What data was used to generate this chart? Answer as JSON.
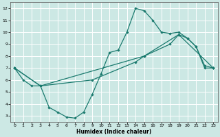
{
  "title": "",
  "xlabel": "Humidex (Indice chaleur)",
  "bg_color": "#cce8e4",
  "line_color": "#1a7a6e",
  "grid_color": "#ffffff",
  "xlim": [
    -0.5,
    23.5
  ],
  "ylim": [
    2.5,
    12.5
  ],
  "xticks": [
    0,
    1,
    2,
    3,
    4,
    5,
    6,
    7,
    8,
    9,
    10,
    11,
    12,
    13,
    14,
    15,
    16,
    17,
    18,
    19,
    20,
    21,
    22,
    23
  ],
  "yticks": [
    3,
    4,
    5,
    6,
    7,
    8,
    9,
    10,
    11,
    12
  ],
  "curve1_x": [
    0,
    1,
    2,
    3,
    4,
    5,
    6,
    7,
    8,
    9,
    10,
    11,
    12,
    13,
    14,
    15,
    16,
    17,
    18,
    19,
    20,
    21,
    22,
    23
  ],
  "curve1_y": [
    7.0,
    6.0,
    5.5,
    5.5,
    3.7,
    3.3,
    2.9,
    2.8,
    3.3,
    4.8,
    6.5,
    8.3,
    8.5,
    10.0,
    12.0,
    11.8,
    11.0,
    10.0,
    9.9,
    10.0,
    9.5,
    8.8,
    7.0,
    7.0
  ],
  "curve2_x": [
    0,
    3,
    15,
    19,
    23
  ],
  "curve2_y": [
    7.0,
    5.5,
    8.0,
    9.8,
    7.0
  ],
  "curve3_x": [
    0,
    3,
    9,
    14,
    15,
    18,
    19,
    20,
    21,
    22,
    23
  ],
  "curve3_y": [
    7.0,
    5.5,
    6.0,
    7.5,
    8.0,
    9.0,
    9.8,
    9.5,
    8.8,
    7.2,
    7.0
  ]
}
